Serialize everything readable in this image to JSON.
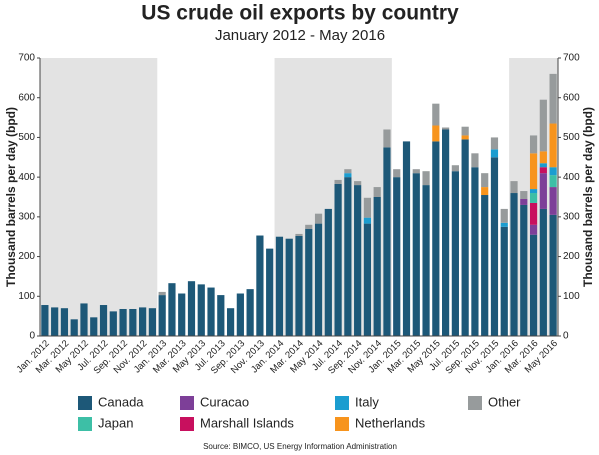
{
  "chart_data": {
    "type": "stacked_bar",
    "title": "US crude oil exports by country",
    "subtitle": "January 2012 - May 2016",
    "y_label": "Thousand barrels per day (bpd)",
    "y2_label": "Thousand barrels per day (bpd)",
    "source": "Source: BIMCO, US Energy Information Administration",
    "categories": [
      "Jan. 2012",
      null,
      "Mar. 2012",
      null,
      "May 2012",
      null,
      "Jul. 2012",
      null,
      "Sep. 2012",
      null,
      "Nov. 2012",
      null,
      "Jan. 2013",
      null,
      "Mar. 2013",
      null,
      "May 2013",
      null,
      "Jul. 2013",
      null,
      "Sep. 2013",
      null,
      "Nov. 2013",
      null,
      "Jan. 2014",
      null,
      "Mar. 2014",
      null,
      "May 2014",
      null,
      "Jul. 2014",
      null,
      "Sep. 2014",
      null,
      "Nov. 2014",
      null,
      "Jan. 2015",
      null,
      "Mar. 2015",
      null,
      "May 2015",
      null,
      "Jul. 2015",
      null,
      "Sep. 2015",
      null,
      "Nov. 2015",
      null,
      "Jan. 2016",
      null,
      "Mar. 2016",
      null,
      "May 2016"
    ],
    "series": [
      {
        "name": "Canada",
        "color": "#1d5878",
        "values": [
          78,
          72,
          70,
          42,
          82,
          47,
          78,
          62,
          68,
          68,
          72,
          70,
          103,
          133,
          107,
          138,
          130,
          122,
          103,
          70,
          107,
          118,
          253,
          220,
          250,
          245,
          252,
          270,
          283,
          320,
          383,
          400,
          380,
          283,
          350,
          475,
          400,
          490,
          410,
          380,
          490,
          520,
          415,
          495,
          425,
          355,
          450,
          275,
          360,
          330,
          255,
          320,
          305
        ]
      },
      {
        "name": "Curacao",
        "color": "#7d3f98",
        "values": [
          0,
          0,
          0,
          0,
          0,
          0,
          0,
          0,
          0,
          0,
          0,
          0,
          0,
          0,
          0,
          0,
          0,
          0,
          0,
          0,
          0,
          0,
          0,
          0,
          0,
          0,
          0,
          0,
          0,
          0,
          0,
          0,
          0,
          0,
          0,
          0,
          0,
          0,
          0,
          0,
          0,
          0,
          0,
          0,
          0,
          0,
          0,
          0,
          0,
          15,
          25,
          90,
          70
        ]
      },
      {
        "name": "Marshall Islands",
        "color": "#c8105e",
        "values": [
          0,
          0,
          0,
          0,
          0,
          0,
          0,
          0,
          0,
          0,
          0,
          0,
          0,
          0,
          0,
          0,
          0,
          0,
          0,
          0,
          0,
          0,
          0,
          0,
          0,
          0,
          0,
          0,
          0,
          0,
          0,
          0,
          0,
          0,
          0,
          0,
          0,
          0,
          0,
          0,
          0,
          0,
          0,
          0,
          0,
          0,
          0,
          0,
          0,
          0,
          55,
          15,
          0
        ]
      },
      {
        "name": "Japan",
        "color": "#3dbfa6",
        "values": [
          0,
          0,
          0,
          0,
          0,
          0,
          0,
          0,
          0,
          0,
          0,
          0,
          0,
          0,
          0,
          0,
          0,
          0,
          0,
          0,
          0,
          0,
          0,
          0,
          0,
          0,
          0,
          0,
          0,
          0,
          0,
          0,
          0,
          0,
          0,
          0,
          0,
          0,
          0,
          0,
          0,
          0,
          0,
          0,
          0,
          0,
          0,
          0,
          0,
          0,
          25,
          0,
          30
        ]
      },
      {
        "name": "Italy",
        "color": "#1b9dd0",
        "values": [
          0,
          0,
          0,
          0,
          0,
          0,
          0,
          0,
          0,
          0,
          0,
          0,
          0,
          0,
          0,
          0,
          0,
          0,
          0,
          0,
          0,
          0,
          0,
          0,
          0,
          0,
          0,
          0,
          0,
          0,
          0,
          10,
          0,
          15,
          0,
          0,
          0,
          0,
          0,
          0,
          0,
          0,
          0,
          0,
          0,
          0,
          20,
          10,
          0,
          0,
          10,
          10,
          20
        ]
      },
      {
        "name": "Netherlands",
        "color": "#f7941d",
        "values": [
          0,
          0,
          0,
          0,
          0,
          0,
          0,
          0,
          0,
          0,
          0,
          0,
          0,
          0,
          0,
          0,
          0,
          0,
          0,
          0,
          0,
          0,
          0,
          0,
          0,
          0,
          0,
          0,
          0,
          0,
          0,
          0,
          0,
          0,
          0,
          0,
          0,
          0,
          0,
          0,
          40,
          0,
          0,
          10,
          0,
          20,
          0,
          0,
          0,
          0,
          90,
          30,
          110
        ]
      },
      {
        "name": "Other",
        "color": "#979b9c",
        "values": [
          0,
          0,
          0,
          0,
          0,
          0,
          0,
          0,
          0,
          0,
          0,
          0,
          8,
          0,
          0,
          0,
          0,
          0,
          0,
          0,
          0,
          0,
          0,
          0,
          0,
          0,
          5,
          10,
          25,
          0,
          10,
          10,
          10,
          50,
          25,
          45,
          20,
          0,
          10,
          35,
          55,
          5,
          15,
          22,
          35,
          35,
          30,
          35,
          30,
          20,
          45,
          130,
          125
        ]
      }
    ],
    "ylim": [
      0,
      700
    ],
    "yticks": [
      0,
      100,
      200,
      300,
      400,
      500,
      600,
      700
    ],
    "y2lim": [
      0,
      700
    ],
    "y2ticks": [
      0,
      100,
      200,
      300,
      400,
      500,
      600,
      700
    ]
  }
}
